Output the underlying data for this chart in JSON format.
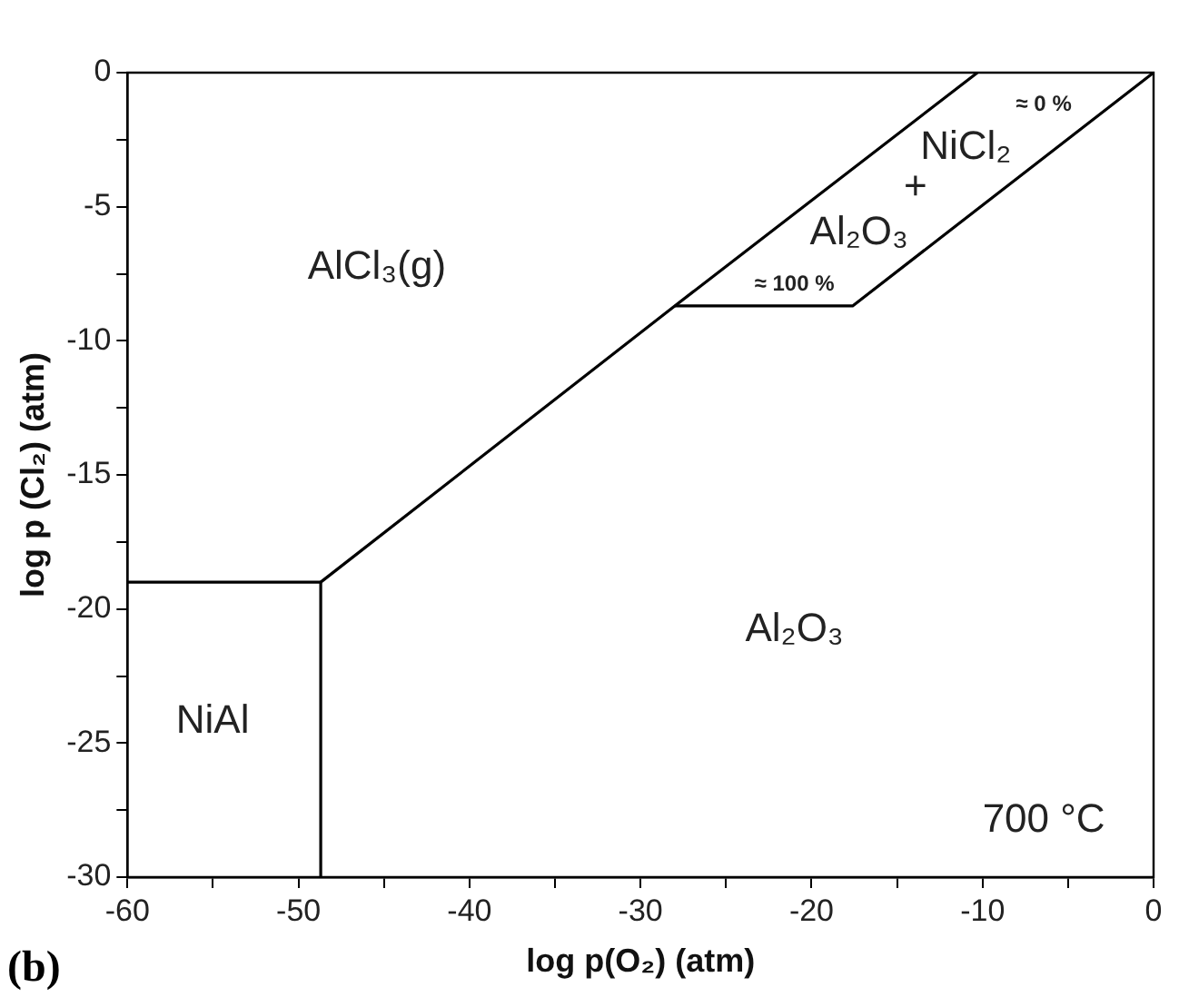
{
  "chart_data": {
    "type": "line",
    "xlabel": "log p(O₂) (atm)",
    "ylabel": "log p (Cl₂) (atm)",
    "xlim": [
      -60,
      0
    ],
    "ylim": [
      -30,
      0
    ],
    "xticks": [
      -60,
      {
        "value": -55,
        "label": null
      },
      -50,
      {
        "value": -45,
        "label": null
      },
      -40,
      {
        "value": -35,
        "label": null
      },
      -30,
      {
        "value": -25,
        "label": null
      },
      -20,
      {
        "value": -15,
        "label": null
      },
      -10,
      {
        "value": -5,
        "label": null
      },
      0
    ],
    "yticks": [
      -30,
      {
        "value": -27.5,
        "label": null
      },
      -25,
      {
        "value": -22.5,
        "label": null
      },
      -20,
      {
        "value": -17.5,
        "label": null
      },
      -15,
      {
        "value": -12.5,
        "label": null
      },
      -10,
      {
        "value": -7.5,
        "label": null
      },
      -5,
      {
        "value": -2.5,
        "label": null
      },
      0
    ],
    "grid": false,
    "legend": false,
    "marker": "none",
    "line_style": "solid",
    "series": [
      {
        "color": "#000000",
        "x": [
          -60,
          -48.7,
          -48.7
        ],
        "values": [
          -19,
          -19,
          -30
        ]
      },
      {
        "color": "#000000",
        "x": [
          -48.7,
          -28,
          -10.3
        ],
        "values": [
          -19,
          -8.7,
          0
        ]
      },
      {
        "color": "#000000",
        "x": [
          -28,
          -17.6,
          0
        ],
        "values": [
          -8.7,
          -8.7,
          0
        ]
      }
    ],
    "annotations": [
      "AlCl₃(g)",
      "≈ 0 %",
      "NiCl₂",
      "+",
      "Al₂O₃",
      "≈ 100 %",
      "Al₂O₃",
      "NiAl",
      "700 °C",
      "(b)"
    ]
  }
}
